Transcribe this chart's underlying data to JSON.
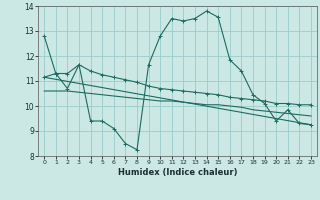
{
  "title": "",
  "xlabel": "Humidex (Indice chaleur)",
  "background_color": "#cce8e4",
  "grid_color": "#99cccc",
  "line_color": "#1a6b60",
  "xlim": [
    -0.5,
    23.5
  ],
  "ylim": [
    8,
    14
  ],
  "xticks": [
    0,
    1,
    2,
    3,
    4,
    5,
    6,
    7,
    8,
    9,
    10,
    11,
    12,
    13,
    14,
    15,
    16,
    17,
    18,
    19,
    20,
    21,
    22,
    23
  ],
  "yticks": [
    8,
    9,
    10,
    11,
    12,
    13,
    14
  ],
  "line1_x": [
    0,
    1,
    2,
    3,
    4,
    5,
    6,
    7,
    8,
    9,
    10,
    11,
    12,
    13,
    14,
    15,
    16,
    17,
    18,
    19,
    20,
    21,
    22,
    23
  ],
  "line1_y": [
    12.8,
    11.3,
    11.3,
    11.65,
    9.4,
    9.4,
    9.1,
    8.5,
    8.25,
    11.65,
    12.8,
    13.5,
    13.4,
    13.5,
    13.8,
    13.55,
    11.85,
    11.4,
    10.45,
    10.1,
    9.4,
    9.85,
    9.3,
    9.25
  ],
  "line2_x": [
    0,
    1,
    2,
    3,
    4,
    5,
    6,
    7,
    8,
    9,
    10,
    11,
    12,
    13,
    14,
    15,
    16,
    17,
    18,
    19,
    20,
    21,
    22,
    23
  ],
  "line2_y": [
    11.15,
    11.3,
    10.7,
    11.65,
    11.4,
    11.25,
    11.15,
    11.05,
    10.95,
    10.8,
    10.7,
    10.65,
    10.6,
    10.55,
    10.5,
    10.45,
    10.35,
    10.3,
    10.25,
    10.2,
    10.1,
    10.1,
    10.05,
    10.05
  ],
  "line3_x": [
    0,
    1,
    2,
    3,
    4,
    5,
    6,
    7,
    8,
    9,
    10,
    11,
    12,
    13,
    14,
    15,
    16,
    17,
    18,
    19,
    20,
    21,
    22,
    23
  ],
  "line3_y": [
    10.6,
    10.6,
    10.6,
    10.55,
    10.5,
    10.45,
    10.4,
    10.35,
    10.3,
    10.25,
    10.2,
    10.2,
    10.15,
    10.1,
    10.05,
    10.05,
    10.0,
    9.95,
    9.85,
    9.8,
    9.75,
    9.7,
    9.65,
    9.6
  ],
  "line4_x": [
    0,
    23
  ],
  "line4_y": [
    11.15,
    9.25
  ],
  "marker_positions_line1": [
    0,
    1,
    2,
    3,
    4,
    5,
    6,
    7,
    8,
    9,
    10,
    11,
    12,
    13,
    14,
    15,
    16,
    17,
    18,
    19,
    20,
    21,
    22,
    23
  ],
  "marker_positions_line2": [
    0,
    1,
    2,
    3,
    4,
    5,
    6,
    7,
    8,
    9,
    10,
    11,
    12,
    13,
    14,
    15,
    16,
    17,
    18,
    19,
    20,
    21,
    22,
    23
  ]
}
